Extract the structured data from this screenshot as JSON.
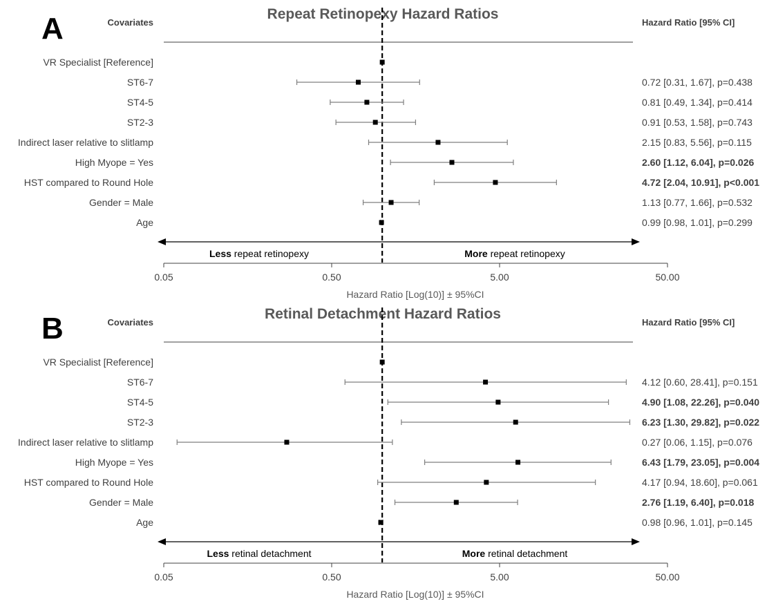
{
  "chart_data": [
    {
      "type": "forest",
      "panel_letter": "A",
      "title": "Repeat Retinopexy Hazard Ratios",
      "left_header": "Covariates",
      "right_header": "Hazard Ratio [95% CI]",
      "xlabel": "Hazard Ratio [Log(10)] ± 95%CI",
      "x_scale": "log10",
      "xlim": [
        0.05,
        50
      ],
      "x_ticks": [
        "0.05",
        "0.50",
        "5.00",
        "50.00"
      ],
      "reference_line": 1,
      "direction_left": {
        "bold": "Less",
        "rest": " repeat retinopexy"
      },
      "direction_right": {
        "bold": "More",
        "rest": " repeat retinopexy"
      },
      "rows": [
        {
          "label": "VR Specialist [Reference]",
          "hr": 1.0,
          "lo": null,
          "hi": null,
          "text": "",
          "significant": false
        },
        {
          "label": "ST6-7",
          "hr": 0.72,
          "lo": 0.31,
          "hi": 1.67,
          "text": "0.72 [0.31, 1.67], p=0.438",
          "significant": false
        },
        {
          "label": "ST4-5",
          "hr": 0.81,
          "lo": 0.49,
          "hi": 1.34,
          "text": "0.81 [0.49, 1.34], p=0.414",
          "significant": false
        },
        {
          "label": "ST2-3",
          "hr": 0.91,
          "lo": 0.53,
          "hi": 1.58,
          "text": "0.91 [0.53, 1.58], p=0.743",
          "significant": false
        },
        {
          "label": "Indirect laser relative to slitlamp",
          "hr": 2.15,
          "lo": 0.83,
          "hi": 5.56,
          "text": "2.15 [0.83, 5.56], p=0.115",
          "significant": false
        },
        {
          "label": "High Myope = Yes",
          "hr": 2.6,
          "lo": 1.12,
          "hi": 6.04,
          "text": "2.60 [1.12, 6.04], p=0.026",
          "significant": true
        },
        {
          "label": "HST compared to Round Hole",
          "hr": 4.72,
          "lo": 2.04,
          "hi": 10.91,
          "text": "4.72 [2.04, 10.91], p<0.001",
          "significant": true
        },
        {
          "label": "Gender = Male",
          "hr": 1.13,
          "lo": 0.77,
          "hi": 1.66,
          "text": "1.13 [0.77, 1.66], p=0.532",
          "significant": false
        },
        {
          "label": "Age",
          "hr": 0.99,
          "lo": 0.98,
          "hi": 1.01,
          "text": "0.99 [0.98, 1.01], p=0.299",
          "significant": false
        }
      ]
    },
    {
      "type": "forest",
      "panel_letter": "B",
      "title": "Retinal Detachment Hazard Ratios",
      "left_header": "Covariates",
      "right_header": "Hazard Ratio [95% CI]",
      "xlabel": "Hazard Ratio [Log(10)] ± 95%CI",
      "x_scale": "log10",
      "xlim": [
        0.05,
        50
      ],
      "x_ticks": [
        "0.05",
        "0.50",
        "5.00",
        "50.00"
      ],
      "reference_line": 1,
      "direction_left": {
        "bold": "Less",
        "rest": " retinal detachment"
      },
      "direction_right": {
        "bold": "More",
        "rest": " retinal detachment"
      },
      "rows": [
        {
          "label": "VR Specialist [Reference]",
          "hr": 1.0,
          "lo": null,
          "hi": null,
          "text": "",
          "significant": false
        },
        {
          "label": "ST6-7",
          "hr": 4.12,
          "lo": 0.6,
          "hi": 28.41,
          "text": "4.12 [0.60, 28.41], p=0.151",
          "significant": false
        },
        {
          "label": "ST4-5",
          "hr": 4.9,
          "lo": 1.08,
          "hi": 22.26,
          "text": "4.90 [1.08, 22.26], p=0.040",
          "significant": true
        },
        {
          "label": "ST2-3",
          "hr": 6.23,
          "lo": 1.3,
          "hi": 29.82,
          "text": "6.23 [1.30, 29.82], p=0.022",
          "significant": true
        },
        {
          "label": "Indirect laser relative to slitlamp",
          "hr": 0.27,
          "lo": 0.06,
          "hi": 1.15,
          "text": "0.27 [0.06, 1.15], p=0.076",
          "significant": false
        },
        {
          "label": "High Myope = Yes",
          "hr": 6.43,
          "lo": 1.79,
          "hi": 23.05,
          "text": "6.43 [1.79, 23.05], p=0.004",
          "significant": true
        },
        {
          "label": "HST compared to Round Hole",
          "hr": 4.17,
          "lo": 0.94,
          "hi": 18.6,
          "text": "4.17 [0.94, 18.60], p=0.061",
          "significant": false
        },
        {
          "label": "Gender = Male",
          "hr": 2.76,
          "lo": 1.19,
          "hi": 6.4,
          "text": "2.76 [1.19, 6.40], p=0.018",
          "significant": true
        },
        {
          "label": "Age",
          "hr": 0.98,
          "lo": 0.96,
          "hi": 1.01,
          "text": "0.98 [0.96, 1.01], p=0.145",
          "significant": false
        }
      ]
    }
  ]
}
